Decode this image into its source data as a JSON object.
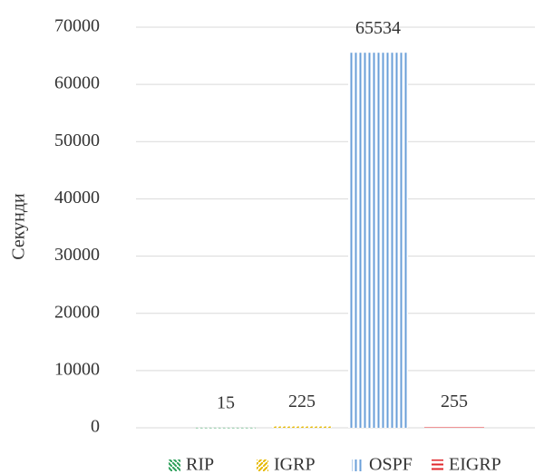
{
  "chart_data": {
    "type": "bar",
    "y_label": "Секунди",
    "categories": [
      null
    ],
    "series": [
      {
        "name": "RIP",
        "color": "#2ca05a",
        "pattern": "diagonal-down",
        "values": [
          15
        ]
      },
      {
        "name": "IGRP",
        "color": "#e6b800",
        "pattern": "diagonal-up",
        "values": [
          225
        ]
      },
      {
        "name": "OSPF",
        "color": "#6a9fd8",
        "pattern": "vertical",
        "values": [
          65534
        ]
      },
      {
        "name": "EIGRP",
        "color": "#e0262a",
        "pattern": "horizontal",
        "values": [
          255
        ]
      }
    ],
    "ylim": [
      0,
      70000
    ],
    "yticks": [
      0,
      10000,
      20000,
      30000,
      40000,
      50000,
      60000,
      70000
    ],
    "grid": true,
    "data_labels": true,
    "legend": "bottom"
  }
}
